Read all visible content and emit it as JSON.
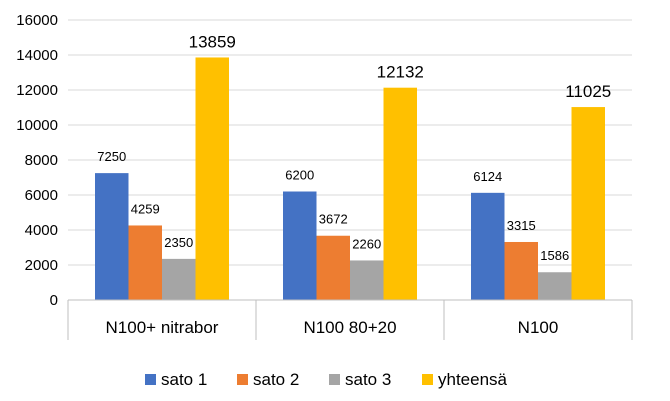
{
  "chart_data": {
    "type": "bar",
    "categories": [
      "N100+ nitrabor",
      "N100 80+20",
      "N100"
    ],
    "series": [
      {
        "name": "sato 1",
        "color": "#4472C4",
        "values": [
          7250,
          6200,
          6124
        ]
      },
      {
        "name": "sato 2",
        "color": "#ED7D31",
        "values": [
          4259,
          3672,
          3315
        ]
      },
      {
        "name": "sato 3",
        "color": "#A5A5A5",
        "values": [
          2350,
          2260,
          1586
        ]
      },
      {
        "name": "yhteensä",
        "color": "#FFC000",
        "values": [
          13859,
          12132,
          11025
        ]
      }
    ],
    "ylim": [
      0,
      16000
    ],
    "yticks": [
      0,
      2000,
      4000,
      6000,
      8000,
      10000,
      12000,
      14000,
      16000
    ],
    "grid": true,
    "legend": "bottom",
    "data_labels": true
  }
}
